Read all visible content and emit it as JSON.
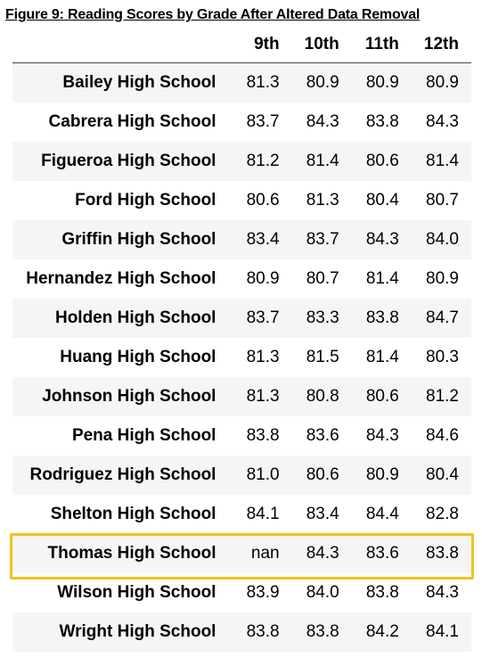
{
  "figure_title": "Figure 9: Reading Scores by Grade After Altered Data Removal",
  "columns": [
    "9th",
    "10th",
    "11th",
    "12th"
  ],
  "rows": [
    {
      "school": "Bailey High School",
      "values": [
        "81.3",
        "80.9",
        "80.9",
        "80.9"
      ]
    },
    {
      "school": "Cabrera High School",
      "values": [
        "83.7",
        "84.3",
        "83.8",
        "84.3"
      ]
    },
    {
      "school": "Figueroa High School",
      "values": [
        "81.2",
        "81.4",
        "80.6",
        "81.4"
      ]
    },
    {
      "school": "Ford High School",
      "values": [
        "80.6",
        "81.3",
        "80.4",
        "80.7"
      ]
    },
    {
      "school": "Griffin High School",
      "values": [
        "83.4",
        "83.7",
        "84.3",
        "84.0"
      ]
    },
    {
      "school": "Hernandez High School",
      "values": [
        "80.9",
        "80.7",
        "81.4",
        "80.9"
      ]
    },
    {
      "school": "Holden High School",
      "values": [
        "83.7",
        "83.3",
        "83.8",
        "84.7"
      ]
    },
    {
      "school": "Huang High School",
      "values": [
        "81.3",
        "81.5",
        "81.4",
        "80.3"
      ]
    },
    {
      "school": "Johnson High School",
      "values": [
        "81.3",
        "80.8",
        "80.6",
        "81.2"
      ]
    },
    {
      "school": "Pena High School",
      "values": [
        "83.8",
        "83.6",
        "84.3",
        "84.6"
      ]
    },
    {
      "school": "Rodriguez High School",
      "values": [
        "81.0",
        "80.6",
        "80.9",
        "80.4"
      ]
    },
    {
      "school": "Shelton High School",
      "values": [
        "84.1",
        "83.4",
        "84.4",
        "82.8"
      ]
    },
    {
      "school": "Thomas High School",
      "values": [
        "nan",
        "84.3",
        "83.6",
        "83.8"
      ]
    },
    {
      "school": "Wilson High School",
      "values": [
        "83.9",
        "84.0",
        "83.8",
        "84.3"
      ]
    },
    {
      "school": "Wright High School",
      "values": [
        "83.8",
        "83.8",
        "84.2",
        "84.1"
      ]
    }
  ],
  "highlighted_row": "Thomas High School",
  "highlight_color": "#f2c21b",
  "stripe_color": "#f5f5f5"
}
